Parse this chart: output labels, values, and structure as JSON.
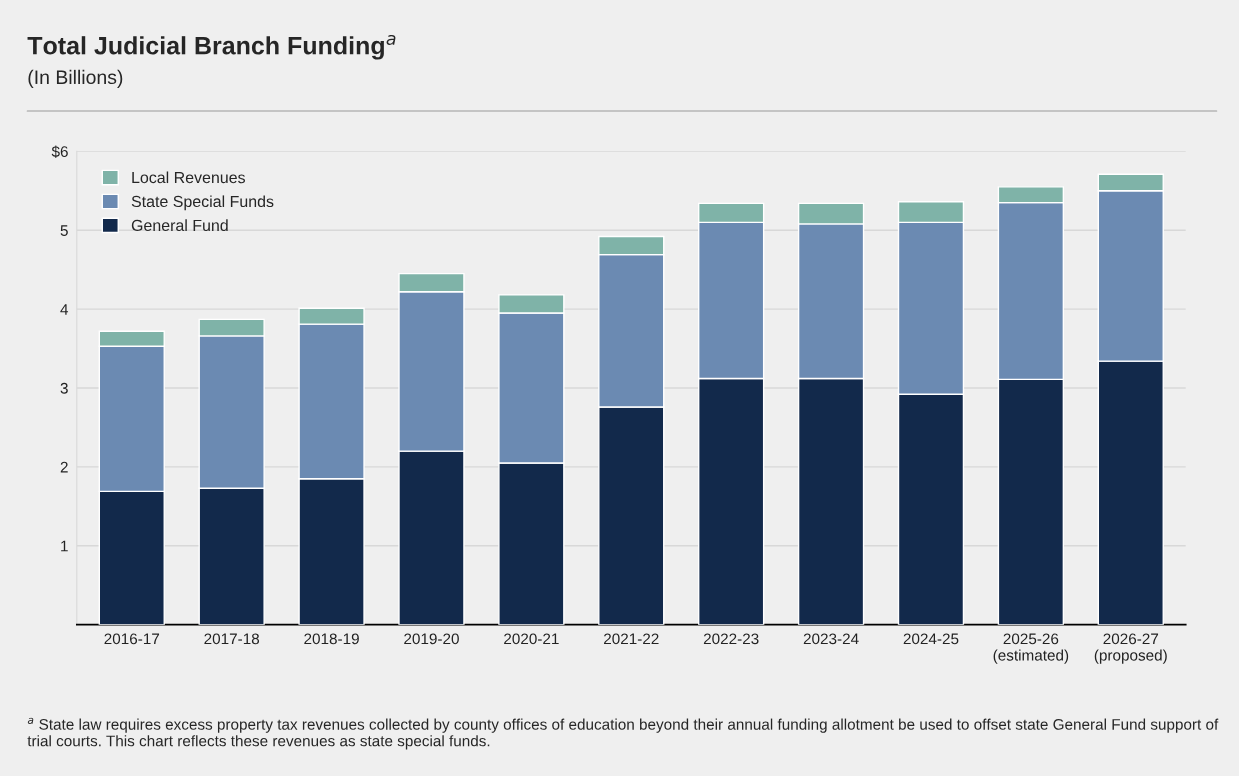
{
  "chart_data": {
    "type": "bar",
    "stacked": true,
    "title": "Total Judicial Branch Funding$^{a}$",
    "subtitle": "(In Billions)",
    "categories": [
      "2016-17",
      "2017-18",
      "2018-19",
      "2019-20",
      "2020-21",
      "2021-22",
      "2022-23",
      "2023-24",
      "2024-25",
      "2025-26\n(estimated)",
      "2026-27\n(proposed)"
    ],
    "series": [
      {
        "name": "General Fund",
        "color": "#12294b",
        "values": [
          1.69,
          1.73,
          1.85,
          2.2,
          2.05,
          2.76,
          3.12,
          3.12,
          2.92,
          3.11,
          3.34
        ]
      },
      {
        "name": "State Special Funds",
        "color": "#6b8ab2",
        "values": [
          1.84,
          1.93,
          1.96,
          2.02,
          1.9,
          1.93,
          1.98,
          1.96,
          2.18,
          2.24,
          2.16
        ]
      },
      {
        "name": "Local Revenues",
        "color": "#7fb3a8",
        "values": [
          0.19,
          0.21,
          0.2,
          0.23,
          0.23,
          0.23,
          0.24,
          0.26,
          0.26,
          0.2,
          0.21
        ]
      }
    ],
    "ylim": [
      0,
      6
    ],
    "yticks": [
      {
        "value": 0,
        "label": null
      },
      1,
      2,
      3,
      4,
      5,
      {
        "value": 6,
        "label": "$6"
      }
    ],
    "grid": "y",
    "legend": "top left",
    "annotations": [
      "$^{a}$ State law requires excess property tax revenues collected by county offices of education beyond their annual funding allotment be used to offset state General Fund support of trial courts. This chart reflects these revenues as state special funds."
    ]
  }
}
